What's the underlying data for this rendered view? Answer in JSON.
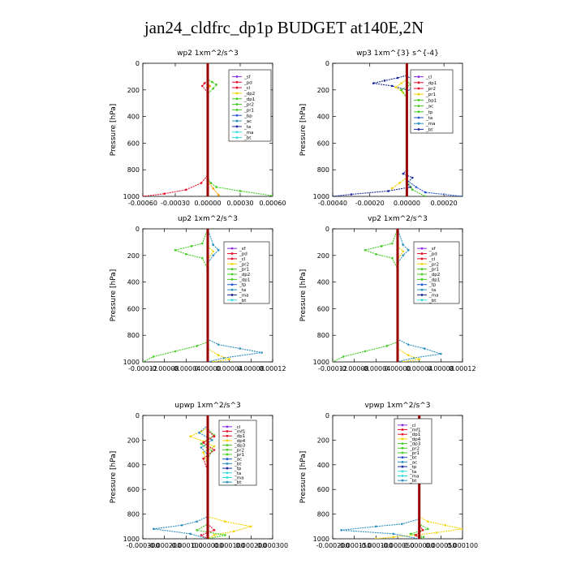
{
  "title": "jan24_cldfrc_dp1p  BUDGET at140E,2N",
  "colors": {
    "purple": "#8a2be2",
    "red": "#e8102a",
    "yellow": "#f2d200",
    "green": "#44cc22",
    "blue": "#2255cc",
    "teal": "#2a8fbf",
    "navy": "#1a2a9a",
    "cyan": "#33dddd",
    "orange": "#ff9900",
    "darkred": "#990000"
  },
  "chart_data": [
    {
      "type": "line",
      "title": "wp2   1xm^2/s^3",
      "ylabel": "Pressure  [hPa]",
      "xlim": [
        -0.0006,
        0.0006
      ],
      "xticks": [
        -0.0006,
        -0.0003,
        0,
        0.0003,
        0.0006
      ],
      "xticklabels": [
        "-0.00060",
        "-0.00030",
        "0.00000",
        "0.00030",
        "0.00060"
      ],
      "ylim": [
        1000,
        0
      ],
      "yticks": [
        0,
        200,
        400,
        600,
        800,
        1000
      ],
      "yticklabels": [
        "0",
        "200",
        "400",
        "600",
        "800",
        "1000"
      ],
      "legend": [
        "_sf",
        "_pd",
        "_cl",
        "_dp2",
        "_dp1",
        "_pr2",
        "_pr1",
        "_bp",
        "_ac",
        "_ta",
        "_ma",
        "_bt"
      ],
      "series": [
        {
          "name": "_pr1",
          "color": "green",
          "x": [
            0,
            0,
            4e-05,
            8e-05,
            5e-05,
            0,
            0,
            3e-05,
            8e-05,
            0.0003,
            0.0006
          ],
          "y": [
            0,
            120,
            140,
            160,
            190,
            230,
            860,
            900,
            930,
            960,
            995
          ]
        },
        {
          "name": "_cl",
          "color": "red",
          "x": [
            0,
            0,
            -3e-05,
            -5e-05,
            0,
            0,
            -6e-05,
            -0.0002,
            -0.0004,
            -0.0006
          ],
          "y": [
            0,
            130,
            150,
            170,
            220,
            840,
            900,
            950,
            980,
            1000
          ]
        },
        {
          "name": "_pd",
          "color": "orange",
          "x": [
            0,
            0,
            2e-05,
            0,
            0,
            5e-05,
            0.0001
          ],
          "y": [
            0,
            150,
            170,
            200,
            880,
            940,
            990
          ]
        },
        {
          "name": "_sf",
          "color": "purple",
          "x": [
            0,
            0
          ],
          "y": [
            0,
            1000
          ]
        },
        {
          "name": "_bt",
          "color": "darkred",
          "x": [
            0,
            0
          ],
          "y": [
            0,
            1000
          ]
        }
      ]
    },
    {
      "type": "line",
      "title": "wp3   1xm^{3} s^{-4}",
      "ylabel": "Pressure  [hPa]",
      "xlim": [
        -0.0004,
        0.0003
      ],
      "xticks": [
        -0.0004,
        -0.0002,
        0,
        0.0002
      ],
      "xticklabels": [
        "-0.00040",
        "-0.00020",
        "0.00000",
        "0.00020"
      ],
      "ylim": [
        1000,
        0
      ],
      "yticks": [
        0,
        200,
        400,
        600,
        800,
        1000
      ],
      "yticklabels": [
        "0",
        "200",
        "400",
        "600",
        "800",
        "1000"
      ],
      "legend": [
        "_cl",
        "_dp1",
        "_pr2",
        "_pr1",
        "_bp1",
        "_ac",
        "_tp",
        "_ta",
        "_ma",
        "_bt"
      ],
      "series": [
        {
          "name": "_ta",
          "color": "navy",
          "x": [
            0,
            0,
            -5e-05,
            -0.00012,
            -0.00018,
            -8e-05,
            0,
            0,
            -2e-05,
            3e-05,
            0,
            2e-05,
            -0.0001,
            -0.0003,
            -0.0004
          ],
          "y": [
            0,
            90,
            110,
            130,
            150,
            170,
            200,
            800,
            830,
            860,
            900,
            930,
            960,
            985,
            1000
          ]
        },
        {
          "name": "_tp",
          "color": "blue",
          "x": [
            0,
            0,
            4e-05,
            8e-05,
            3e-05,
            0,
            0,
            5e-05,
            0.0001,
            0.0003
          ],
          "y": [
            0,
            100,
            120,
            140,
            170,
            220,
            880,
            930,
            970,
            1000
          ]
        },
        {
          "name": "_pr2",
          "color": "yellow",
          "x": [
            0,
            0,
            -3e-05,
            -6e-05,
            -2e-05,
            0,
            0,
            -4e-05,
            -8e-05
          ],
          "y": [
            0,
            120,
            150,
            180,
            220,
            260,
            860,
            900,
            940
          ]
        },
        {
          "name": "_pr1",
          "color": "green",
          "x": [
            0,
            0,
            2e-05,
            -3e-05,
            0,
            0,
            3e-05,
            0.0001
          ],
          "y": [
            0,
            130,
            160,
            200,
            260,
            880,
            950,
            1000
          ]
        },
        {
          "name": "_cl",
          "color": "red",
          "x": [
            0,
            0
          ],
          "y": [
            0,
            1000
          ]
        },
        {
          "name": "_bt",
          "color": "darkred",
          "x": [
            0,
            0
          ],
          "y": [
            0,
            1000
          ]
        }
      ]
    },
    {
      "type": "line",
      "title": "up2   1xm^2/s^3",
      "ylabel": "Pressure  [hPa]",
      "xlim": [
        -0.00012,
        0.00012
      ],
      "xticks": [
        -0.00012,
        -8e-05,
        -4e-05,
        0,
        4e-05,
        8e-05,
        0.00012
      ],
      "xticklabels": [
        "-0.00012",
        "-0.00008",
        "-0.00004",
        "0.00000",
        "0.00004",
        "0.00008",
        "0.00012"
      ],
      "ylim": [
        1000,
        0
      ],
      "yticks": [
        0,
        200,
        400,
        600,
        800,
        1000
      ],
      "yticklabels": [
        "0",
        "200",
        "400",
        "600",
        "800",
        "1000"
      ],
      "legend": [
        "_sf",
        "_pd",
        "_cl",
        "_pr2",
        "_pr1",
        "_dp2",
        "_dp1",
        "_tp",
        "_ta",
        "_ma",
        "_bt"
      ],
      "series": [
        {
          "name": "_dp2",
          "color": "green",
          "x": [
            0,
            -1e-05,
            -3e-05,
            -6e-05,
            -4e-05,
            -1e-05,
            0,
            0,
            -2e-05,
            -6e-05,
            -0.0001,
            -0.00012
          ],
          "y": [
            0,
            110,
            130,
            160,
            190,
            220,
            300,
            850,
            880,
            920,
            960,
            1000
          ]
        },
        {
          "name": "_tp",
          "color": "teal",
          "x": [
            0,
            1e-05,
            2e-05,
            1e-05,
            0,
            0,
            2e-05,
            6e-05,
            0.0001,
            3e-05,
            0
          ],
          "y": [
            0,
            120,
            160,
            200,
            260,
            830,
            870,
            900,
            930,
            970,
            1000
          ]
        },
        {
          "name": "_pr2",
          "color": "yellow",
          "x": [
            0,
            0,
            1e-05,
            0,
            0,
            2e-05,
            4e-05,
            1e-05
          ],
          "y": [
            0,
            130,
            170,
            230,
            900,
            950,
            980,
            1000
          ]
        },
        {
          "name": "_cl",
          "color": "red",
          "x": [
            0,
            0
          ],
          "y": [
            0,
            1000
          ]
        },
        {
          "name": "_bt",
          "color": "darkred",
          "x": [
            0,
            0
          ],
          "y": [
            0,
            1000
          ]
        }
      ]
    },
    {
      "type": "line",
      "title": "vp2   1xm^2/s^3",
      "ylabel": "Pressure  [hPa]",
      "xlim": [
        -0.00012,
        0.00012
      ],
      "xticks": [
        -0.00012,
        -8e-05,
        -4e-05,
        0,
        4e-05,
        8e-05,
        0.00012
      ],
      "xticklabels": [
        "-0.00012",
        "-0.00008",
        "-0.00004",
        "0.00000",
        "0.00004",
        "0.00008",
        "0.00012"
      ],
      "ylim": [
        1000,
        0
      ],
      "yticks": [
        0,
        200,
        400,
        600,
        800,
        1000
      ],
      "yticklabels": [
        "0",
        "200",
        "400",
        "600",
        "800",
        "1000"
      ],
      "legend": [
        "_sf",
        "_pd",
        "_cl",
        "_pr2",
        "_pr1",
        "_dp2",
        "_dp1",
        "_tp",
        "_ta",
        "_ma",
        "_bt"
      ],
      "series": [
        {
          "name": "_dp2",
          "color": "green",
          "x": [
            0,
            -1e-05,
            -3e-05,
            -6e-05,
            -4e-05,
            -1e-05,
            0,
            0,
            -2e-05,
            -6e-05,
            -0.0001,
            -0.00012
          ],
          "y": [
            0,
            110,
            130,
            160,
            190,
            220,
            300,
            850,
            880,
            920,
            960,
            1000
          ]
        },
        {
          "name": "_tp",
          "color": "teal",
          "x": [
            0,
            1e-05,
            2e-05,
            1e-05,
            0,
            0,
            2e-05,
            5e-05,
            8e-05,
            3e-05,
            0
          ],
          "y": [
            0,
            120,
            160,
            200,
            260,
            830,
            870,
            900,
            940,
            970,
            1000
          ]
        },
        {
          "name": "_pr2",
          "color": "yellow",
          "x": [
            0,
            0,
            1e-05,
            0,
            0,
            2e-05,
            4e-05,
            1e-05
          ],
          "y": [
            0,
            130,
            170,
            230,
            900,
            950,
            980,
            1000
          ]
        },
        {
          "name": "_cl",
          "color": "red",
          "x": [
            0,
            0
          ],
          "y": [
            0,
            1000
          ]
        },
        {
          "name": "_bt",
          "color": "darkred",
          "x": [
            0,
            0
          ],
          "y": [
            0,
            1000
          ]
        }
      ]
    },
    {
      "type": "line",
      "title": "upwp   1xm^2/s^3",
      "ylabel": "Pressure  [hPa]",
      "xlim": [
        -0.0003,
        0.0003
      ],
      "xticks": [
        -0.0003,
        -0.0002,
        -0.0001,
        0,
        0.0001,
        0.0002,
        0.0003
      ],
      "xticklabels": [
        "-0.000300",
        "-0.000200",
        "-0.000100",
        "0.000000",
        "0.000100",
        "0.000200",
        "0.000300"
      ],
      "ylim": [
        1000,
        0
      ],
      "yticks": [
        0,
        200,
        400,
        600,
        800,
        1000
      ],
      "yticklabels": [
        "0",
        "200",
        "400",
        "600",
        "800",
        "1000"
      ],
      "legend": [
        "_cl",
        "_mf1",
        "_dp1",
        "_dp4",
        "_dp3",
        "_pr2",
        "_pr1",
        "_ac",
        "_bt",
        "_tp",
        "_ta",
        "_ma",
        "_bt"
      ],
      "series": [
        {
          "name": "_pr2",
          "color": "yellow",
          "x": [
            0,
            0,
            -3e-05,
            -8e-05,
            -2e-05,
            3e-05,
            -2e-05,
            0,
            0,
            8e-05,
            0.0002,
            0.00012,
            3e-05,
            0
          ],
          "y": [
            0,
            100,
            130,
            170,
            210,
            250,
            300,
            400,
            820,
            860,
            900,
            940,
            970,
            1000
          ]
        },
        {
          "name": "_tp",
          "color": "teal",
          "x": [
            0,
            0,
            -4e-05,
            2e-05,
            -3e-05,
            0,
            0,
            -5e-05,
            -0.00012,
            -0.00025,
            -8e-05,
            0
          ],
          "y": [
            0,
            80,
            140,
            200,
            260,
            320,
            820,
            860,
            890,
            920,
            960,
            1000
          ]
        },
        {
          "name": "_dp1",
          "color": "green",
          "x": [
            0,
            0,
            3e-05,
            -3e-05,
            2e-05,
            0,
            0,
            -5e-05,
            8e-05,
            0
          ],
          "y": [
            0,
            110,
            160,
            230,
            290,
            350,
            880,
            930,
            970,
            1000
          ]
        },
        {
          "name": "_cl",
          "color": "red",
          "x": [
            0,
            0,
            3e-05,
            -2e-05,
            3e-05,
            -2e-05,
            0,
            0,
            3e-05,
            -3e-05,
            0
          ],
          "y": [
            0,
            120,
            170,
            220,
            280,
            350,
            450,
            880,
            930,
            970,
            1000
          ]
        },
        {
          "name": "_bt",
          "color": "darkred",
          "x": [
            0,
            0
          ],
          "y": [
            0,
            1000
          ]
        }
      ]
    },
    {
      "type": "line",
      "title": "vpwp   1xm^2/s^3",
      "ylabel": "Pressure  [hPa]",
      "xlim": [
        -0.0002,
        0.0001
      ],
      "xticks": [
        -0.0002,
        -0.00015,
        -0.0001,
        -5e-05,
        0,
        5e-05,
        0.0001
      ],
      "xticklabels": [
        "-0.000200",
        "-0.000150",
        "-0.000100",
        "-0.000050",
        "0.000000",
        "0.000050",
        "0.000100"
      ],
      "ylim": [
        1000,
        0
      ],
      "yticks": [
        0,
        200,
        400,
        600,
        800,
        1000
      ],
      "yticklabels": [
        "0",
        "200",
        "400",
        "600",
        "800",
        "1000"
      ],
      "legend": [
        "_cl",
        "_mf1",
        "_dp1",
        "_dp4",
        "_dp3",
        "_pr2",
        "_pr1",
        "_bt",
        "_ac",
        "_tp",
        "_ta",
        "_ma",
        "_bt"
      ],
      "series": [
        {
          "name": "_pr2",
          "color": "yellow",
          "x": [
            0,
            0,
            -1e-05,
            1e-05,
            -1e-05,
            0,
            0,
            2e-05,
            6e-05,
            0.0001,
            4e-05,
            -1e-05,
            -6e-05,
            -0.0001
          ],
          "y": [
            0,
            100,
            150,
            200,
            260,
            350,
            820,
            860,
            890,
            920,
            950,
            970,
            985,
            1000
          ]
        },
        {
          "name": "_tp",
          "color": "teal",
          "x": [
            0,
            0,
            -1e-05,
            1e-05,
            0,
            0,
            -4e-05,
            -0.0001,
            -0.00018,
            -6e-05,
            0
          ],
          "y": [
            0,
            80,
            150,
            220,
            300,
            840,
            880,
            900,
            930,
            960,
            1000
          ]
        },
        {
          "name": "_ac",
          "color": "green",
          "x": [
            0,
            0,
            1e-05,
            0,
            0,
            2e-05,
            -2e-05,
            1e-05,
            0
          ],
          "y": [
            0,
            120,
            180,
            260,
            880,
            920,
            960,
            985,
            1000
          ]
        },
        {
          "name": "_cl",
          "color": "red",
          "x": [
            0,
            0,
            5e-06,
            -5e-06,
            0,
            0,
            8e-06,
            -8e-06,
            0
          ],
          "y": [
            0,
            120,
            180,
            240,
            320,
            880,
            930,
            970,
            1000
          ]
        },
        {
          "name": "_bt",
          "color": "darkred",
          "x": [
            0,
            0
          ],
          "y": [
            0,
            1000
          ]
        }
      ]
    }
  ]
}
